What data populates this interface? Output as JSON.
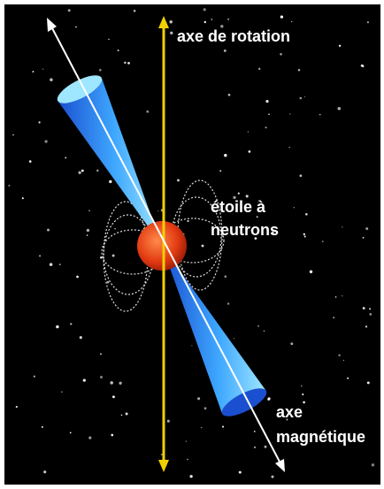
{
  "labels": {
    "rotation_axis": "axe de rotation",
    "neutron_star": [
      "étoile à",
      "neutrons"
    ],
    "magnetic_axis": [
      "axe",
      "magnétique"
    ]
  }
}
